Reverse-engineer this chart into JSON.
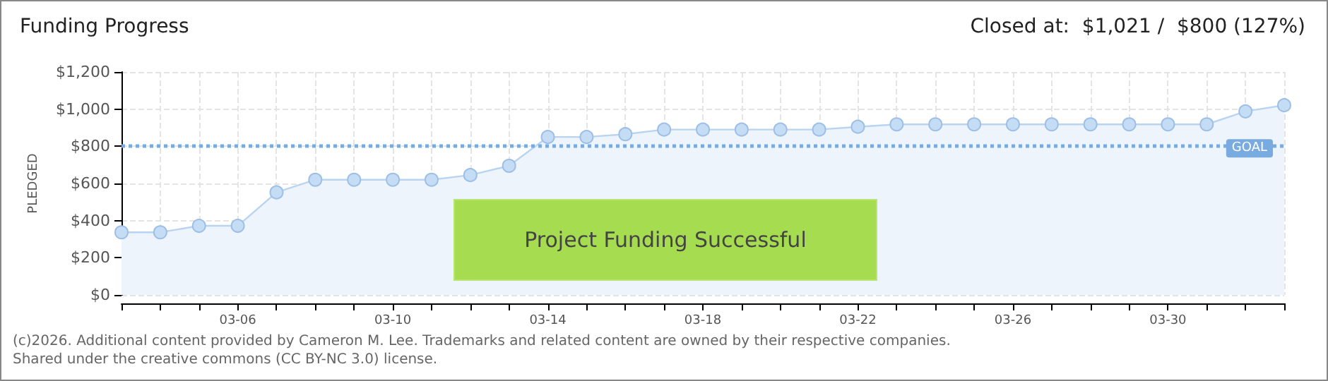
{
  "chart_data": {
    "type": "area",
    "title": "Funding Progress",
    "subtitle": "Closed at:  $1,021 /  $800 (127%)",
    "ylabel": "PLEDGED",
    "annotations": [
      "Project Funding Successful",
      "(c)2026. Additional content provided by Cameron M. Lee. Trademarks and related content are owned by their respective companies.",
      "Shared under the creative commons (CC BY-NC 3.0) license."
    ],
    "categories": [
      null,
      null,
      null,
      "03-06",
      null,
      null,
      null,
      "03-10",
      null,
      null,
      null,
      "03-14",
      null,
      null,
      null,
      "03-18",
      null,
      null,
      null,
      "03-22",
      null,
      null,
      null,
      "03-26",
      null,
      null,
      null,
      "03-30",
      null,
      null,
      null
    ],
    "series": [
      {
        "color": "#b8d4f0",
        "values": [
          337,
          337,
          372,
          372,
          552,
          620,
          620,
          620,
          620,
          645,
          695,
          850,
          850,
          865,
          890,
          890,
          890,
          890,
          890,
          905,
          918,
          918,
          918,
          918,
          918,
          918,
          918,
          918,
          918,
          988,
          1021
        ]
      }
    ],
    "ylim": [
      0,
      1200
    ],
    "yticks": [
      {
        "value": 0,
        "label": "$0"
      },
      {
        "value": 200,
        "label": "$200"
      },
      {
        "value": 400,
        "label": "$400"
      },
      {
        "value": 600,
        "label": "$600"
      },
      {
        "value": 800,
        "label": "$800"
      },
      {
        "value": 1000,
        "label": "$1,000"
      },
      {
        "value": 1200,
        "label": "$1,200"
      }
    ],
    "ref_lines": [
      {
        "axis": "y",
        "value": 800,
        "label": "GOAL",
        "color": "#7aabe0",
        "line_style": "dotted"
      }
    ],
    "grid": true,
    "marker": "circle",
    "line_style": "solid"
  }
}
